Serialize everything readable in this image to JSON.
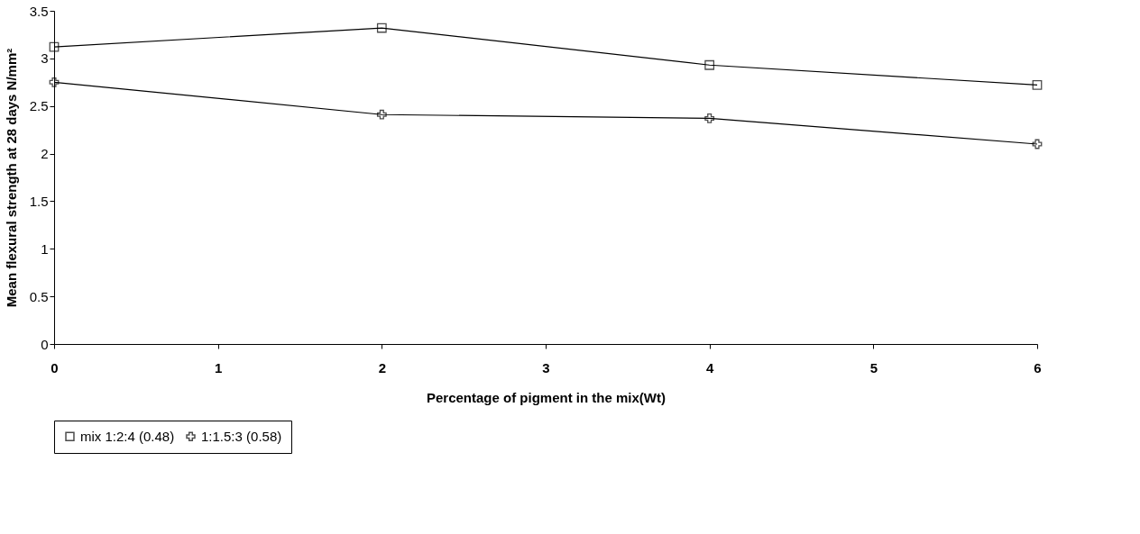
{
  "chart_data": {
    "type": "line",
    "xlabel": "Percentage of pigment in the mix(Wt)",
    "ylabel": "Mean flexural strength at 28 days N/mm²",
    "x": [
      0,
      2,
      4,
      6
    ],
    "series": [
      {
        "name": "mix 1:2:4 (0.48)",
        "color": "#000000",
        "marker": "square",
        "values": [
          3.12,
          3.32,
          2.93,
          2.72
        ]
      },
      {
        "name": "1:1.5:3 (0.58)",
        "color": "#000000",
        "marker": "cross",
        "values": [
          2.75,
          2.41,
          2.37,
          2.1
        ]
      }
    ],
    "xlim": [
      0,
      6
    ],
    "xticks": [
      0,
      1,
      2,
      3,
      4,
      5,
      6
    ],
    "ylim": [
      0,
      3.5
    ],
    "yticks": [
      0,
      0.5,
      1,
      1.5,
      2,
      2.5,
      3,
      3.5
    ],
    "grid": false,
    "legend": "bottom",
    "line_style": "solid"
  }
}
